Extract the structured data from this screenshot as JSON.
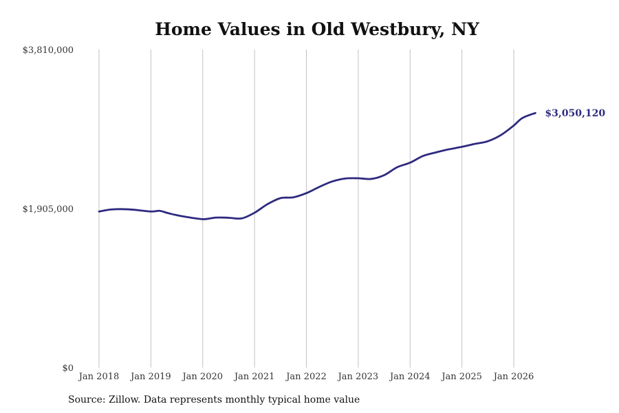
{
  "chart_data": {
    "type": "line",
    "title": "Home Values in Old Westbury, NY",
    "xlabel": "",
    "ylabel": "",
    "ylim": [
      0,
      3810000
    ],
    "y_ticks": [
      {
        "value": 0,
        "label": "$0"
      },
      {
        "value": 1905000,
        "label": "$1,905,000"
      },
      {
        "value": 3810000,
        "label": "$3,810,000"
      }
    ],
    "x_ticks": [
      {
        "value": "2018-01",
        "label": "Jan 2018"
      },
      {
        "value": "2019-01",
        "label": "Jan 2019"
      },
      {
        "value": "2020-01",
        "label": "Jan 2020"
      },
      {
        "value": "2021-01",
        "label": "Jan 2021"
      },
      {
        "value": "2022-01",
        "label": "Jan 2022"
      },
      {
        "value": "2023-01",
        "label": "Jan 2023"
      },
      {
        "value": "2024-01",
        "label": "Jan 2024"
      },
      {
        "value": "2025-01",
        "label": "Jan 2025"
      },
      {
        "value": "2026-01",
        "label": "Jan 2026"
      }
    ],
    "x_grid": true,
    "y_grid": false,
    "series": [
      {
        "color": "#2e2a7f",
        "points": [
          {
            "x": "2018-01",
            "y": 1870000
          },
          {
            "x": "2018-04",
            "y": 1895000
          },
          {
            "x": "2018-08",
            "y": 1895000
          },
          {
            "x": "2019-01",
            "y": 1870000
          },
          {
            "x": "2019-03",
            "y": 1878000
          },
          {
            "x": "2019-05",
            "y": 1850000
          },
          {
            "x": "2019-08",
            "y": 1815000
          },
          {
            "x": "2020-01",
            "y": 1778000
          },
          {
            "x": "2020-04",
            "y": 1797000
          },
          {
            "x": "2020-07",
            "y": 1795000
          },
          {
            "x": "2020-10",
            "y": 1787000
          },
          {
            "x": "2021-01",
            "y": 1855000
          },
          {
            "x": "2021-04",
            "y": 1958000
          },
          {
            "x": "2021-07",
            "y": 2030000
          },
          {
            "x": "2021-10",
            "y": 2040000
          },
          {
            "x": "2022-01",
            "y": 2090000
          },
          {
            "x": "2022-04",
            "y": 2165000
          },
          {
            "x": "2022-07",
            "y": 2230000
          },
          {
            "x": "2022-10",
            "y": 2265000
          },
          {
            "x": "2023-01",
            "y": 2268000
          },
          {
            "x": "2023-04",
            "y": 2260000
          },
          {
            "x": "2023-07",
            "y": 2305000
          },
          {
            "x": "2023-10",
            "y": 2400000
          },
          {
            "x": "2024-01",
            "y": 2455000
          },
          {
            "x": "2024-04",
            "y": 2535000
          },
          {
            "x": "2024-07",
            "y": 2578000
          },
          {
            "x": "2024-10",
            "y": 2615000
          },
          {
            "x": "2025-01",
            "y": 2645000
          },
          {
            "x": "2025-04",
            "y": 2680000
          },
          {
            "x": "2025-07",
            "y": 2712000
          },
          {
            "x": "2025-10",
            "y": 2785000
          },
          {
            "x": "2026-01",
            "y": 2900000
          },
          {
            "x": "2026-03",
            "y": 2990000
          },
          {
            "x": "2026-06",
            "y": 3050120
          }
        ]
      }
    ],
    "annotations": [
      {
        "text": "$3,050,120",
        "x": "2026-06",
        "y": 3050120,
        "color": "#2e2a7f"
      }
    ]
  },
  "footer": {
    "source": "Source: Zillow. Data represents monthly typical home value"
  }
}
